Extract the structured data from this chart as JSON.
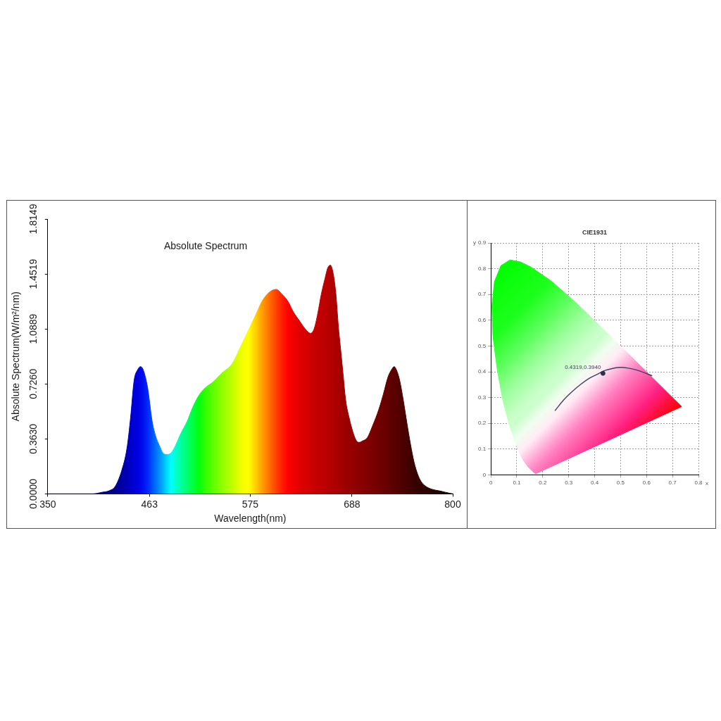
{
  "chart_data": [
    {
      "type": "area",
      "title": "Absolute Spectrum",
      "xlabel": "Wavelength(nm)",
      "ylabel": "Absolute Spectrum(W/m²/nm)",
      "x": [
        350,
        400,
        410,
        418,
        425,
        432,
        438,
        442,
        446,
        450,
        453,
        456,
        461,
        466,
        470,
        474,
        478,
        482,
        487,
        492,
        498,
        505,
        511,
        518,
        525,
        534,
        544,
        555,
        565,
        573,
        581,
        588,
        596,
        604,
        610,
        617,
        623,
        630,
        636,
        642,
        646,
        650,
        654,
        658,
        661,
        664,
        667,
        670,
        673,
        675,
        678,
        681,
        685,
        689,
        693,
        696,
        700,
        705,
        711,
        718,
        723,
        728,
        732,
        735,
        738,
        741,
        745,
        749,
        753,
        757,
        761,
        765,
        770,
        777,
        785,
        792,
        800
      ],
      "values": [
        0,
        0,
        0.01,
        0.02,
        0.05,
        0.15,
        0.3,
        0.5,
        0.75,
        0.82,
        0.84,
        0.82,
        0.7,
        0.48,
        0.38,
        0.32,
        0.27,
        0.26,
        0.27,
        0.32,
        0.4,
        0.48,
        0.57,
        0.65,
        0.7,
        0.74,
        0.8,
        0.86,
        0.98,
        1.08,
        1.18,
        1.27,
        1.33,
        1.35,
        1.32,
        1.27,
        1.2,
        1.14,
        1.09,
        1.06,
        1.09,
        1.19,
        1.32,
        1.42,
        1.49,
        1.51,
        1.46,
        1.33,
        1.1,
        0.98,
        0.8,
        0.62,
        0.5,
        0.41,
        0.35,
        0.34,
        0.35,
        0.37,
        0.45,
        0.56,
        0.66,
        0.77,
        0.82,
        0.84,
        0.81,
        0.75,
        0.62,
        0.47,
        0.33,
        0.21,
        0.13,
        0.08,
        0.05,
        0.03,
        0.02,
        0.01,
        0
      ],
      "colors": [
        "#000080",
        "#000080",
        "#000080",
        "#000088",
        "#000090",
        "#0000a0",
        "#0000b8",
        "#0000c8",
        "#0000d8",
        "#0000e0",
        "#0008e8",
        "#0010f0",
        "#0028ff",
        "#0050ff",
        "#0070ff",
        "#0090ff",
        "#00b0ff",
        "#00d8ff",
        "#00ffff",
        "#00ffd0",
        "#00ffa0",
        "#00ff70",
        "#00ff40",
        "#00ff10",
        "#30ff00",
        "#60ff00",
        "#90ff00",
        "#c0ff00",
        "#f0ff00",
        "#ffff00",
        "#ffd000",
        "#ffa000",
        "#ff7000",
        "#ff4000",
        "#ff2000",
        "#ff0000",
        "#f00000",
        "#e00000",
        "#d80000",
        "#d00000",
        "#c80000",
        "#c40000",
        "#c00000",
        "#bc0000",
        "#b80000",
        "#b40000",
        "#b00000",
        "#ac0000",
        "#a80000",
        "#a40000",
        "#a00000",
        "#9c0000",
        "#980000",
        "#940000",
        "#900000",
        "#8c0000",
        "#880000",
        "#820000",
        "#7a0000",
        "#720000",
        "#6a0000",
        "#640000",
        "#5e0000",
        "#5a0000",
        "#560000",
        "#520000",
        "#4c0000",
        "#460000",
        "#400000",
        "#3a0000",
        "#340000",
        "#300000",
        "#2c0000",
        "#280000",
        "#240000",
        "#200000",
        "#1c0000"
      ],
      "xlim": [
        350,
        800
      ],
      "xticks": [
        350,
        463,
        575,
        688,
        800
      ],
      "ylim": [
        0,
        1.8149
      ],
      "yticks": [
        {
          "value": 0,
          "label": "0.0000"
        },
        {
          "value": 0.363,
          "label": "0.3630"
        },
        {
          "value": 0.726,
          "label": "0.7260"
        },
        1.0889,
        1.4519,
        1.8149
      ]
    },
    {
      "type": "line",
      "title": "CIE1931",
      "xlabel": "x",
      "ylabel": "y",
      "series": [
        {
          "type": "area",
          "x": [
            0.174,
            0.171,
            0.164,
            0.157,
            0.144,
            0.124,
            0.11,
            0.091,
            0.069,
            0.045,
            0.024,
            0.008,
            0.004,
            0.014,
            0.039,
            0.074,
            0.114,
            0.155,
            0.23,
            0.302,
            0.373,
            0.444,
            0.513,
            0.575,
            0.627,
            0.692,
            0.719,
            0.735,
            0.455,
            0.174
          ],
          "values": [
            0.005,
            0.005,
            0.011,
            0.018,
            0.03,
            0.058,
            0.087,
            0.133,
            0.201,
            0.295,
            0.413,
            0.538,
            0.655,
            0.75,
            0.812,
            0.834,
            0.826,
            0.806,
            0.754,
            0.692,
            0.625,
            0.555,
            0.487,
            0.424,
            0.373,
            0.308,
            0.281,
            0.265,
            0.135,
            0.005
          ],
          "colors": [
            "#ff76b8",
            "#ff77ba",
            "#ff7ebf",
            "#ff89c5",
            "#ff9ecf",
            "#ffc7e3",
            "#ffecf5",
            "#efffef",
            "#cdffcd",
            "#a0ffa0",
            "#59ff59",
            "#1dff1d",
            "#0fff0f",
            "#05ff05",
            "#00ff00",
            "#02ff02",
            "#08ff08",
            "#0fff0f",
            "#1dff1d",
            "#59ff59",
            "#9fff9f",
            "#caffca",
            "#ffe9f4",
            "#ff80c0",
            "#ff4599",
            "#ff1249",
            "#ff071b",
            "#ff0000",
            "#ff2080",
            "#ff76b8"
          ]
        },
        {
          "x": [
            0.248,
            0.28,
            0.31,
            0.345,
            0.38,
            0.41,
            0.44,
            0.47,
            0.5,
            0.53,
            0.56,
            0.59,
            0.62
          ],
          "values": [
            0.25,
            0.29,
            0.32,
            0.35,
            0.375,
            0.39,
            0.405,
            0.413,
            0.417,
            0.414,
            0.407,
            0.397,
            0.385
          ],
          "color": "#404060"
        },
        {
          "type": "scatter",
          "x": [
            0.432
          ],
          "values": [
            0.394
          ],
          "color": "#303050",
          "marker": "circle"
        }
      ],
      "annotations": [
        {
          "text": "0.4319,0.3940",
          "x": 0.432,
          "y": 0.394
        }
      ],
      "xlim": [
        0,
        0.8
      ],
      "xticks": [
        0,
        0.1,
        0.2,
        0.3,
        0.4,
        0.5,
        0.6,
        0.7,
        0.8
      ],
      "ylim": [
        0,
        0.9
      ],
      "yticks": [
        0,
        0.1,
        0.2,
        0.3,
        0.4,
        0.5,
        0.6,
        0.7,
        0.8,
        0.9
      ],
      "grid": true
    }
  ]
}
